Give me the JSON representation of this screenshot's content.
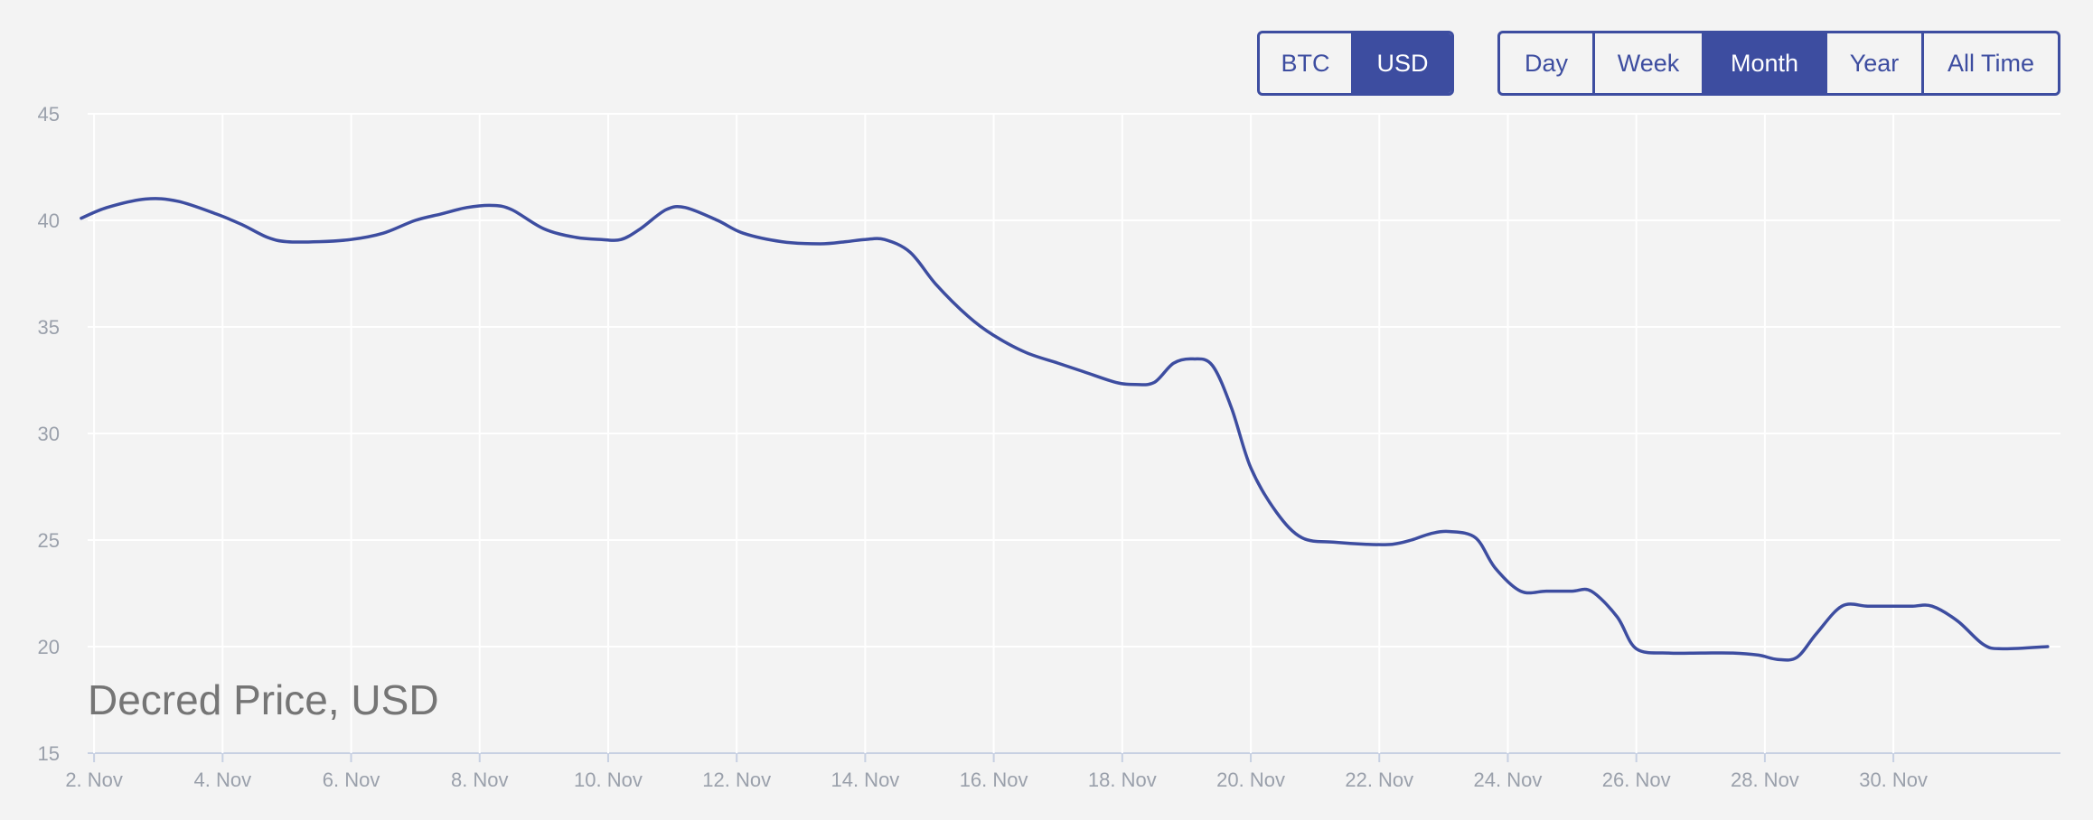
{
  "currency_toggle": {
    "options": [
      {
        "label": "BTC",
        "active": false
      },
      {
        "label": "USD",
        "active": true
      }
    ]
  },
  "range_toggle": {
    "options": [
      {
        "label": "Day",
        "active": false
      },
      {
        "label": "Week",
        "active": false
      },
      {
        "label": "Month",
        "active": true
      },
      {
        "label": "Year",
        "active": false
      },
      {
        "label": "All Time",
        "active": false
      }
    ]
  },
  "colors": {
    "accent": "#3d4da0",
    "background": "#f3f3f3",
    "grid": "#ffffff",
    "tick_text": "#9aa0ab",
    "title_text": "#757575"
  },
  "chart_data": {
    "type": "line",
    "title": "Decred Price, USD",
    "xlabel": "",
    "ylabel": "",
    "x_unit": "day of November",
    "xlim": [
      1.9,
      32.6
    ],
    "ylim": [
      15,
      45
    ],
    "y_ticks": [
      15,
      20,
      25,
      30,
      35,
      40,
      45
    ],
    "x_ticks": [
      {
        "value": 2,
        "label": "2. Nov"
      },
      {
        "value": 4,
        "label": "4. Nov"
      },
      {
        "value": 6,
        "label": "6. Nov"
      },
      {
        "value": 8,
        "label": "8. Nov"
      },
      {
        "value": 10,
        "label": "10. Nov"
      },
      {
        "value": 12,
        "label": "12. Nov"
      },
      {
        "value": 14,
        "label": "14. Nov"
      },
      {
        "value": 16,
        "label": "16. Nov"
      },
      {
        "value": 18,
        "label": "18. Nov"
      },
      {
        "value": 20,
        "label": "20. Nov"
      },
      {
        "value": 22,
        "label": "22. Nov"
      },
      {
        "value": 24,
        "label": "24. Nov"
      },
      {
        "value": 26,
        "label": "26. Nov"
      },
      {
        "value": 28,
        "label": "28. Nov"
      },
      {
        "value": 30,
        "label": "30. Nov"
      }
    ],
    "grid": true,
    "legend": "none",
    "series": [
      {
        "color": "#3d4da0",
        "x": [
          1.8,
          2.2,
          2.8,
          3.3,
          3.9,
          4.3,
          4.7,
          5.0,
          5.5,
          6.0,
          6.5,
          7.0,
          7.4,
          7.8,
          8.2,
          8.5,
          9.0,
          9.5,
          9.9,
          10.2,
          10.5,
          10.9,
          11.2,
          11.7,
          12.1,
          12.7,
          13.3,
          13.7,
          14.0,
          14.3,
          14.7,
          15.1,
          15.6,
          16.0,
          16.5,
          17.0,
          17.4,
          17.9,
          18.2,
          18.5,
          18.8,
          19.1,
          19.4,
          19.7,
          20.0,
          20.4,
          20.8,
          21.3,
          21.8,
          22.2,
          22.5,
          22.8,
          23.1,
          23.5,
          23.8,
          24.2,
          24.6,
          25.0,
          25.3,
          25.7,
          26.0,
          26.5,
          27.0,
          27.5,
          27.9,
          28.2,
          28.5,
          28.8,
          29.2,
          29.6,
          30.0,
          30.3,
          30.6,
          31.0,
          31.4,
          31.7,
          32.4
        ],
        "y": [
          40.1,
          40.6,
          41.0,
          40.9,
          40.3,
          39.8,
          39.2,
          39.0,
          39.0,
          39.1,
          39.4,
          40.0,
          40.3,
          40.6,
          40.7,
          40.5,
          39.6,
          39.2,
          39.1,
          39.1,
          39.6,
          40.5,
          40.6,
          40.0,
          39.4,
          39.0,
          38.9,
          39.0,
          39.1,
          39.1,
          38.5,
          37.0,
          35.5,
          34.6,
          33.8,
          33.3,
          32.9,
          32.4,
          32.3,
          32.4,
          33.3,
          33.5,
          33.2,
          31.2,
          28.4,
          26.3,
          25.1,
          24.9,
          24.8,
          24.8,
          25.0,
          25.3,
          25.4,
          25.1,
          23.7,
          22.6,
          22.6,
          22.6,
          22.6,
          21.4,
          19.9,
          19.7,
          19.7,
          19.7,
          19.6,
          19.4,
          19.5,
          20.6,
          21.9,
          21.9,
          21.9,
          21.9,
          21.9,
          21.2,
          20.1,
          19.9,
          20.0
        ]
      }
    ]
  }
}
